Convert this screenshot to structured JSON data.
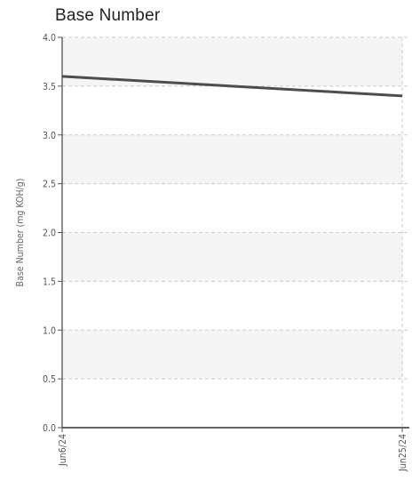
{
  "chart_data": {
    "type": "line",
    "title": "Base Number",
    "xlabel": "",
    "ylabel": "Base Number (mg KOH/g)",
    "categories": [
      "Jun6/24",
      "Jun25/24"
    ],
    "series": [
      {
        "values": [
          3.6,
          3.4
        ],
        "color": "#4d4d4d"
      }
    ],
    "ylim": [
      0,
      4.0
    ],
    "yticks": [
      "0.0",
      "0.5",
      "1.0",
      "1.5",
      "2.0",
      "2.5",
      "3.0",
      "3.5",
      "4.0"
    ],
    "grid": true,
    "legend": "none"
  }
}
